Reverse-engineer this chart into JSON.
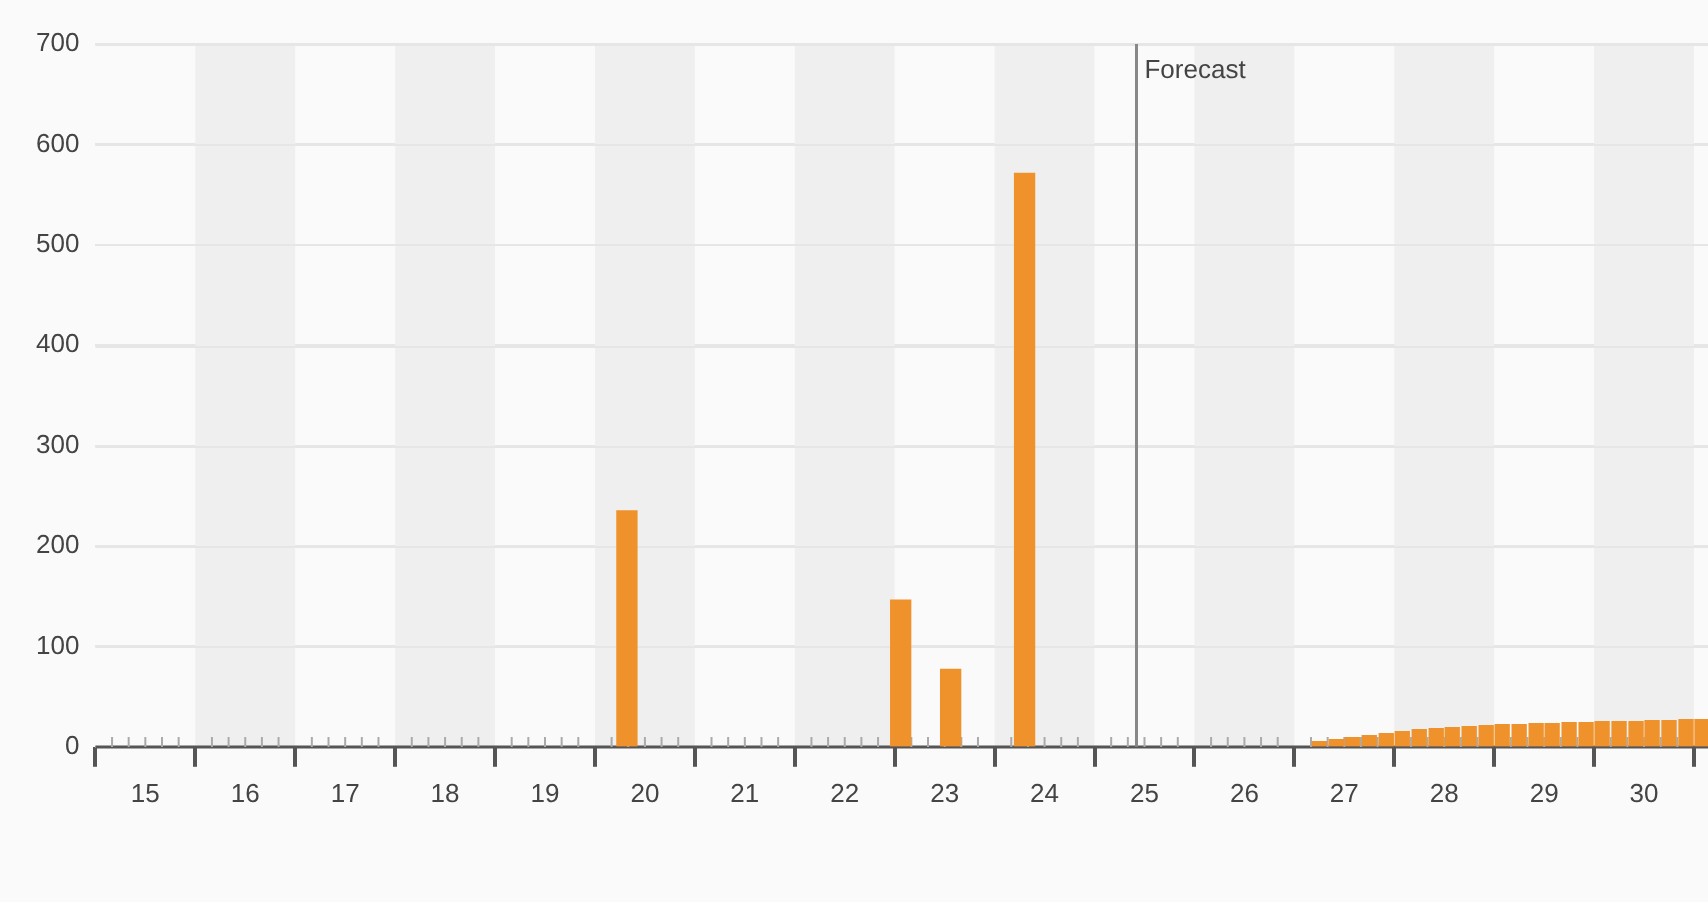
{
  "chart_data": {
    "type": "bar",
    "series": [
      {
        "color": "#f0922b",
        "x": [
          19.82,
          22.56,
          23.06,
          23.8
        ],
        "values": [
          235,
          146,
          77,
          571
        ]
      },
      {
        "color": "#f0922b",
        "x": [
          26.75,
          26.92,
          27.08,
          27.25,
          27.42,
          27.58,
          27.75,
          27.92,
          28.08,
          28.25,
          28.42,
          28.58,
          28.75,
          28.92,
          29.08,
          29.25,
          29.42,
          29.58,
          29.75,
          29.92,
          30.08,
          30.25,
          30.42,
          30.58
        ],
        "values": [
          5,
          7,
          9,
          11,
          13,
          15,
          17,
          18,
          19,
          20,
          21,
          22,
          22,
          23,
          23,
          24,
          24,
          25,
          25,
          25,
          26,
          26,
          27,
          27
        ]
      }
    ],
    "xlim": [
      14.5,
      30.64
    ],
    "xticks": [
      15,
      16,
      17,
      18,
      19,
      20,
      21,
      22,
      23,
      24,
      25,
      26,
      27,
      28,
      29,
      30,
      {
        "value": 14.5,
        "label": null
      },
      {
        "value": 15.5,
        "label": null
      },
      {
        "value": 16.5,
        "label": null
      },
      {
        "value": 17.5,
        "label": null
      },
      {
        "value": 18.5,
        "label": null
      },
      {
        "value": 19.5,
        "label": null
      },
      {
        "value": 20.5,
        "label": null
      },
      {
        "value": 21.5,
        "label": null
      },
      {
        "value": 22.5,
        "label": null
      },
      {
        "value": 23.5,
        "label": null
      },
      {
        "value": 24.5,
        "label": null
      },
      {
        "value": 25.5,
        "label": null
      },
      {
        "value": 26.5,
        "label": null
      },
      {
        "value": 27.5,
        "label": null
      },
      {
        "value": 28.5,
        "label": null
      },
      {
        "value": 29.5,
        "label": null
      },
      {
        "value": 30.5,
        "label": null
      }
    ],
    "ylim": [
      0,
      700
    ],
    "yticks": [
      0,
      100,
      200,
      300,
      400,
      500,
      600,
      700
    ],
    "ref_lines": [
      {
        "axis": "x",
        "value": 24.92,
        "label": "Forecast",
        "color": "#888888"
      }
    ],
    "bands": [
      {
        "axis": "x",
        "from": 15.5,
        "to": 16.5,
        "color": "#efefef"
      },
      {
        "axis": "x",
        "from": 17.5,
        "to": 18.5,
        "color": "#efefef"
      },
      {
        "axis": "x",
        "from": 19.5,
        "to": 20.5,
        "color": "#efefef"
      },
      {
        "axis": "x",
        "from": 21.5,
        "to": 22.5,
        "color": "#efefef"
      },
      {
        "axis": "x",
        "from": 23.5,
        "to": 24.5,
        "color": "#efefef"
      },
      {
        "axis": "x",
        "from": 25.5,
        "to": 26.5,
        "color": "#efefef"
      },
      {
        "axis": "x",
        "from": 27.5,
        "to": 28.5,
        "color": "#efefef"
      },
      {
        "axis": "x",
        "from": 29.5,
        "to": 30.5,
        "color": "#efefef"
      }
    ],
    "grid": "y",
    "legend": false
  }
}
